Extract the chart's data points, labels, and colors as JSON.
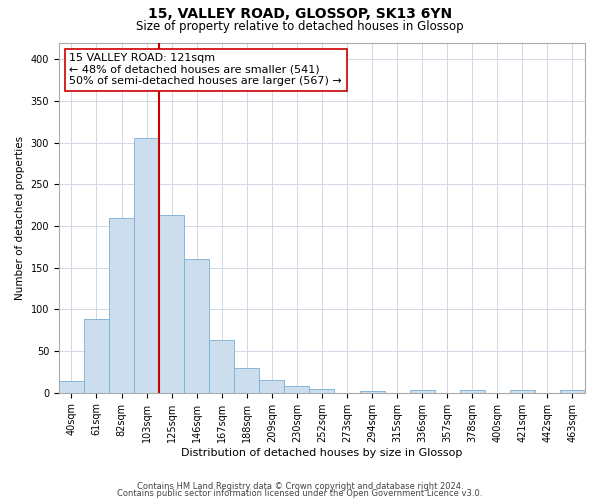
{
  "title": "15, VALLEY ROAD, GLOSSOP, SK13 6YN",
  "subtitle": "Size of property relative to detached houses in Glossop",
  "xlabel": "Distribution of detached houses by size in Glossop",
  "ylabel": "Number of detached properties",
  "categories": [
    "40sqm",
    "61sqm",
    "82sqm",
    "103sqm",
    "125sqm",
    "146sqm",
    "167sqm",
    "188sqm",
    "209sqm",
    "230sqm",
    "252sqm",
    "273sqm",
    "294sqm",
    "315sqm",
    "336sqm",
    "357sqm",
    "378sqm",
    "400sqm",
    "421sqm",
    "442sqm",
    "463sqm"
  ],
  "values": [
    14,
    88,
    210,
    305,
    213,
    160,
    63,
    30,
    15,
    8,
    5,
    0,
    2,
    0,
    3,
    0,
    3,
    0,
    3,
    0,
    3
  ],
  "bar_color": "#ccdded",
  "bar_edge_color": "#7aaed4",
  "vline_x": 3.5,
  "vline_color": "#cc0000",
  "annotation_line1": "15 VALLEY ROAD: 121sqm",
  "annotation_line2": "← 48% of detached houses are smaller (541)",
  "annotation_line3": "50% of semi-detached houses are larger (567) →",
  "annotation_box_color": "#ffffff",
  "annotation_box_edge_color": "#cc0000",
  "ylim": [
    0,
    420
  ],
  "yticks": [
    0,
    50,
    100,
    150,
    200,
    250,
    300,
    350,
    400
  ],
  "footnote1": "Contains HM Land Registry data © Crown copyright and database right 2024.",
  "footnote2": "Contains public sector information licensed under the Open Government Licence v3.0.",
  "background_color": "#ffffff",
  "grid_color": "#d0d8e4",
  "title_fontsize": 10,
  "subtitle_fontsize": 8.5,
  "xlabel_fontsize": 8,
  "ylabel_fontsize": 7.5,
  "tick_fontsize": 7,
  "footnote_fontsize": 6,
  "annotation_fontsize": 8
}
